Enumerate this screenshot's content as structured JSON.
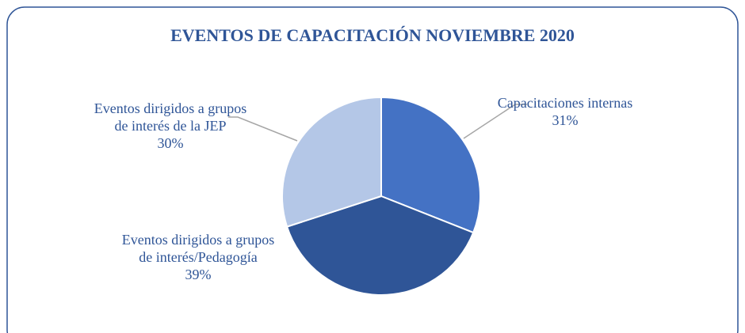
{
  "chart_data": {
    "type": "pie",
    "title": "EVENTOS DE CAPACITACIÓN NOVIEMBRE 2020",
    "categories": [
      "Capacitaciones internas",
      "Eventos dirigidos a grupos de interés/Pedagogía",
      "Eventos dirigidos a grupos de interés de la JEP"
    ],
    "values": [
      31,
      39,
      30
    ],
    "value_labels": [
      "31%",
      "39%",
      "30%"
    ],
    "colors": [
      "#4472c4",
      "#2f5597",
      "#b4c7e7"
    ]
  }
}
